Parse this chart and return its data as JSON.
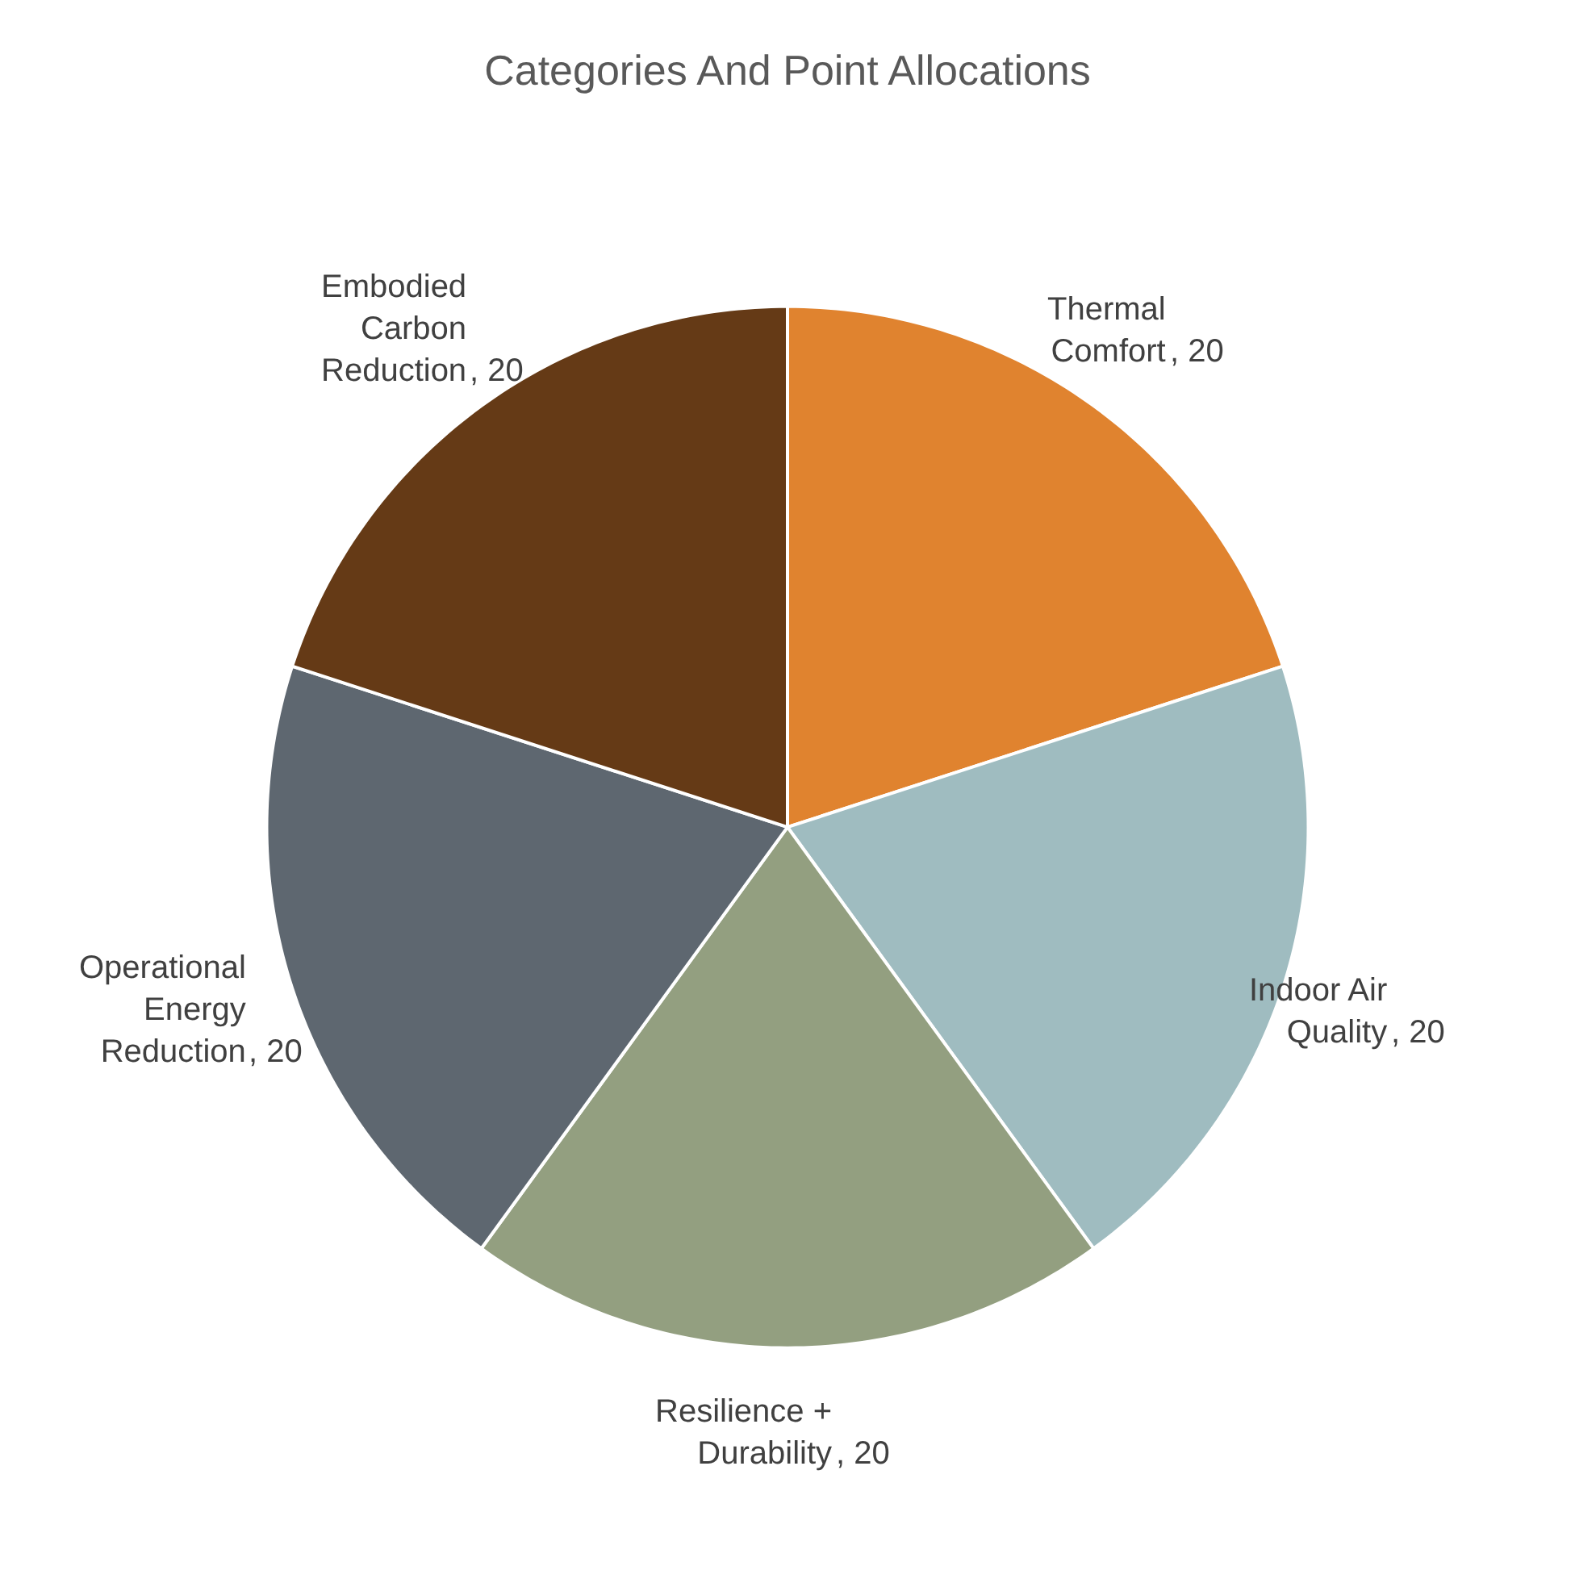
{
  "chart_data": {
    "type": "pie",
    "title": "Categories And Point Allocations",
    "categories": [
      "Thermal Comfort",
      "Indoor Air Quality",
      "Resilience + Durability",
      "Operational Energy Reduction",
      "Embodied Carbon Reduction"
    ],
    "values": [
      20,
      20,
      20,
      20,
      20
    ],
    "colors": [
      "#e0832f",
      "#9fbcc0",
      "#939f80",
      "#5e6770",
      "#653a16"
    ],
    "value_labels": [
      ", 20",
      ", 20",
      ", 20",
      ", 20",
      ", 20"
    ],
    "legend": false
  }
}
